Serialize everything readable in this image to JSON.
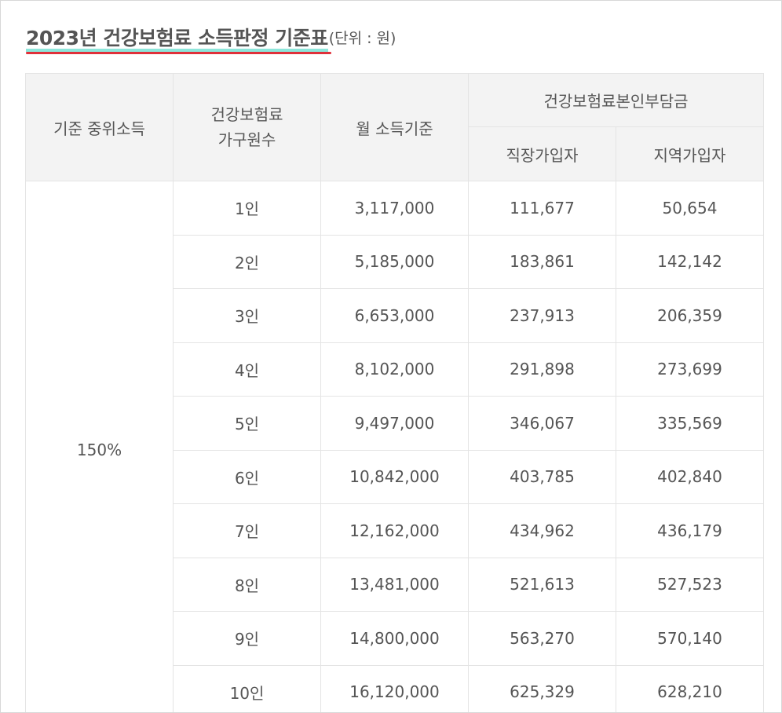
{
  "title": {
    "main": "2023년 건강보험료 소득판정 기준표",
    "unit": "(단위 : 원)"
  },
  "table": {
    "headers": {
      "median_income": "기준 중위소득",
      "household_line1": "건강보험료",
      "household_line2": "가구원수",
      "monthly_income": "월 소득기준",
      "premium_group": "건강보험료본인부담금",
      "employee": "직장가입자",
      "regional": "지역가입자"
    },
    "base_label": "150%",
    "rows": [
      {
        "members": "1인",
        "income": "3,117,000",
        "employee": "111,677",
        "regional": "50,654"
      },
      {
        "members": "2인",
        "income": "5,185,000",
        "employee": "183,861",
        "regional": "142,142"
      },
      {
        "members": "3인",
        "income": "6,653,000",
        "employee": "237,913",
        "regional": "206,359"
      },
      {
        "members": "4인",
        "income": "8,102,000",
        "employee": "291,898",
        "regional": "273,699"
      },
      {
        "members": "5인",
        "income": "9,497,000",
        "employee": "346,067",
        "regional": "335,569"
      },
      {
        "members": "6인",
        "income": "10,842,000",
        "employee": "403,785",
        "regional": "402,840"
      },
      {
        "members": "7인",
        "income": "12,162,000",
        "employee": "434,962",
        "regional": "436,179"
      },
      {
        "members": "8인",
        "income": "13,481,000",
        "employee": "521,613",
        "regional": "527,523"
      },
      {
        "members": "9인",
        "income": "14,800,000",
        "employee": "563,270",
        "regional": "570,140"
      },
      {
        "members": "10인",
        "income": "16,120,000",
        "employee": "625,329",
        "regional": "628,210"
      }
    ]
  },
  "colors": {
    "header_bg": "#f3f3f3",
    "border": "#e4e4e4",
    "text": "#555555",
    "underline_red": "#e0303a",
    "underline_teal": "#7fe3d6"
  }
}
